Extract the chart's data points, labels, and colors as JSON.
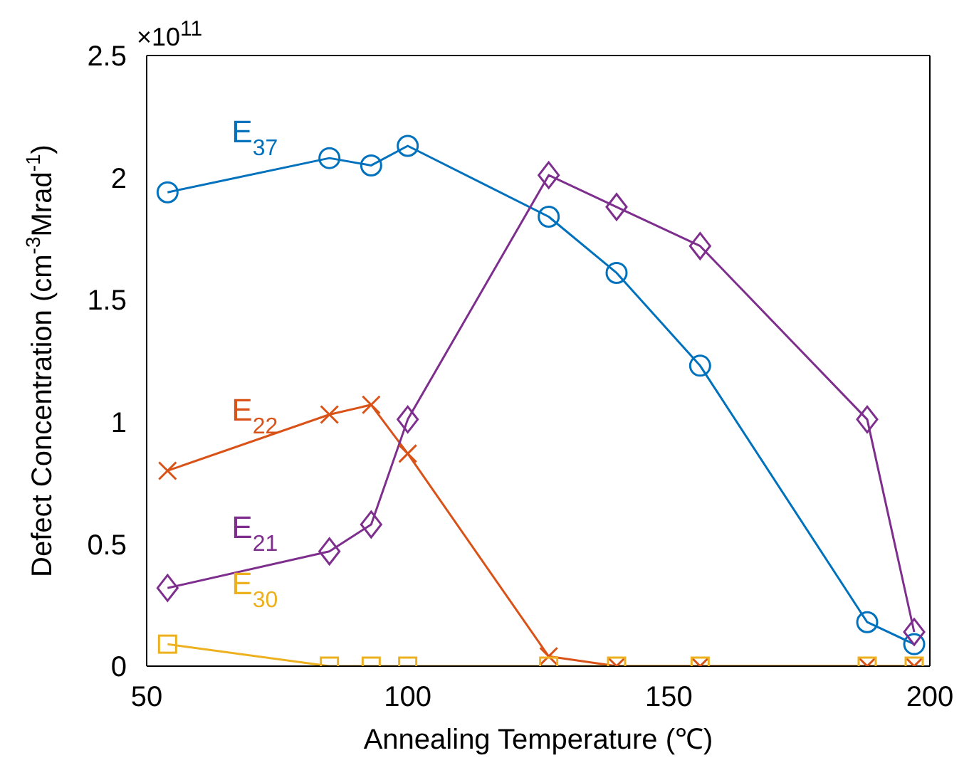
{
  "chart_data": {
    "type": "line",
    "xlabel": "Annealing Temperature (℃)",
    "ylabel": "Defect Concentration (cm$^{-3}$Mrad$^{-1}$)",
    "annotations": [
      "×10$^{11}$"
    ],
    "x": [
      54,
      85,
      93,
      100,
      127,
      140,
      156,
      188,
      197
    ],
    "xlim": [
      50,
      200
    ],
    "xticks": [
      50,
      100,
      150,
      200
    ],
    "ylim": [
      0,
      2.5
    ],
    "yticks": [
      0,
      0.5,
      1,
      1.5,
      2,
      2.5
    ],
    "legend": false,
    "series": [
      {
        "name": "E$_{37}$",
        "color": "#0072bd",
        "marker": "circle",
        "values": [
          1.94,
          2.08,
          2.05,
          2.13,
          1.84,
          1.61,
          1.23,
          0.18,
          0.09
        ]
      },
      {
        "name": "E$_{22}$",
        "color": "#d95319",
        "marker": "cross",
        "values": [
          0.8,
          1.03,
          1.07,
          0.87,
          0.04,
          0,
          0,
          0,
          0
        ]
      },
      {
        "name": "E$_{21}$",
        "color": "#7e2f8e",
        "marker": "diamond",
        "values": [
          0.32,
          0.47,
          0.58,
          1.01,
          2.01,
          1.88,
          1.72,
          1.01,
          0.14
        ]
      },
      {
        "name": "E$_{30}$",
        "color": "#edb120",
        "marker": "square",
        "values": [
          0.09,
          0,
          0,
          0,
          0,
          0,
          0,
          0,
          0
        ]
      }
    ]
  }
}
